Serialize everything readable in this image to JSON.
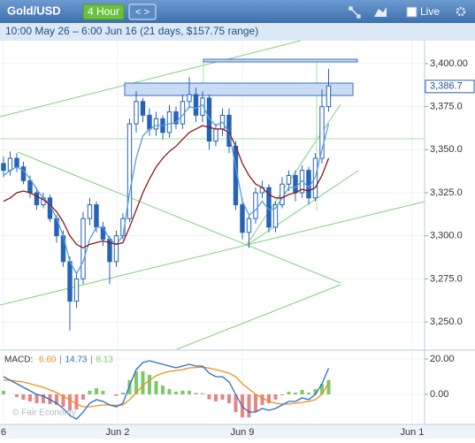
{
  "header": {
    "title": "Gold/USD",
    "timeframe": "4 Hour",
    "nav": "< >",
    "live": "Live"
  },
  "subtitle": "10:00 May 26 – 6:00 Jun 16 (21 days, $157.75 range)",
  "watermark": "© Fair Economy",
  "chart_data": [
    {
      "type": "candlestick",
      "xlim": [
        -0.53,
        63.47
      ],
      "xticks": [
        {
          "value": 0,
          "label": "6"
        },
        {
          "value": 17.2,
          "label": "Jun 2"
        },
        {
          "value": 36,
          "label": "Jun 9"
        },
        {
          "value": 61.6,
          "label": "Jun 1"
        }
      ],
      "ylim": [
        3234.1,
        3413.3
      ],
      "yticks": [
        {
          "value": 3250,
          "label": "3,250.0"
        },
        {
          "value": 3275,
          "label": "3,275.0"
        },
        {
          "value": 3300,
          "label": "3,300.0"
        },
        {
          "value": 3325,
          "label": "3,325.0"
        },
        {
          "value": 3350,
          "label": "3,350.0"
        },
        {
          "value": 3375,
          "label": "3,375.0"
        },
        {
          "value": 3400,
          "label": "3,400.00"
        }
      ],
      "current_price": {
        "value": 3386.7,
        "label": "3,386.7"
      },
      "color": "#2563b6",
      "open": [
        3342,
        3338,
        3345,
        3340,
        3332,
        3325,
        3318,
        3322,
        3310,
        3300,
        3285,
        3262,
        3275,
        3310,
        3318,
        3305,
        3298,
        3285,
        3300,
        3310,
        3365,
        3378,
        3370,
        3362,
        3368,
        3360,
        3372,
        3365,
        3378,
        3382,
        3370,
        3380,
        3355,
        3362,
        3370,
        3352,
        3318,
        3302,
        3310,
        3325,
        3328,
        3305,
        3318,
        3330,
        3335,
        3325,
        3338,
        3322,
        3345,
        3375
      ],
      "high": [
        3346,
        3349,
        3348,
        3343,
        3335,
        3328,
        3325,
        3324,
        3312,
        3303,
        3288,
        3278,
        3314,
        3322,
        3320,
        3308,
        3300,
        3303,
        3313,
        3368,
        3384,
        3380,
        3374,
        3372,
        3370,
        3376,
        3375,
        3382,
        3392,
        3386,
        3384,
        3382,
        3365,
        3374,
        3374,
        3355,
        3322,
        3312,
        3328,
        3332,
        3330,
        3320,
        3334,
        3338,
        3338,
        3341,
        3340,
        3348,
        3385,
        3397
      ],
      "low": [
        3334,
        3335,
        3337,
        3330,
        3322,
        3315,
        3316,
        3308,
        3296,
        3282,
        3245,
        3258,
        3272,
        3306,
        3302,
        3294,
        3272,
        3282,
        3298,
        3308,
        3360,
        3366,
        3358,
        3358,
        3356,
        3357,
        3362,
        3362,
        3374,
        3366,
        3366,
        3350,
        3352,
        3358,
        3348,
        3315,
        3298,
        3293,
        3307,
        3322,
        3302,
        3302,
        3316,
        3326,
        3320,
        3322,
        3318,
        3320,
        3342,
        3372
      ],
      "close": [
        3338,
        3345,
        3340,
        3332,
        3325,
        3318,
        3322,
        3310,
        3300,
        3285,
        3262,
        3275,
        3310,
        3318,
        3305,
        3298,
        3285,
        3300,
        3310,
        3365,
        3378,
        3370,
        3362,
        3368,
        3360,
        3372,
        3365,
        3378,
        3382,
        3370,
        3380,
        3355,
        3362,
        3370,
        3352,
        3318,
        3302,
        3310,
        3325,
        3328,
        3305,
        3318,
        3330,
        3335,
        3325,
        3338,
        3322,
        3345,
        3375,
        3387
      ],
      "series": [
        {
          "color": "#5b9be0",
          "values": [
            3335,
            3338,
            3340,
            3338,
            3333,
            3327,
            3322,
            3318,
            3310,
            3300,
            3285,
            3278,
            3285,
            3298,
            3305,
            3305,
            3298,
            3295,
            3300,
            3325,
            3345,
            3358,
            3362,
            3364,
            3364,
            3365,
            3366,
            3370,
            3375,
            3374,
            3376,
            3368,
            3364,
            3366,
            3360,
            3340,
            3320,
            3312,
            3315,
            3320,
            3315,
            3316,
            3322,
            3328,
            3328,
            3332,
            3328,
            3334,
            3350,
            3365
          ]
        },
        {
          "color": "#8b1a1a",
          "values": [
            3320,
            3322,
            3325,
            3326,
            3325,
            3323,
            3321,
            3318,
            3314,
            3308,
            3300,
            3295,
            3293,
            3295,
            3296,
            3297,
            3296,
            3295,
            3296,
            3305,
            3315,
            3325,
            3333,
            3340,
            3345,
            3349,
            3352,
            3356,
            3360,
            3362,
            3364,
            3363,
            3362,
            3362,
            3360,
            3352,
            3342,
            3335,
            3330,
            3328,
            3324,
            3322,
            3322,
            3324,
            3325,
            3327,
            3326,
            3328,
            3335,
            3345
          ]
        }
      ]
    },
    {
      "type": "macd",
      "title": "MACD:",
      "xlim": [
        -0.53,
        63.47
      ],
      "ylim": [
        -16,
        24
      ],
      "yticks": [
        {
          "value": 0,
          "label": "0.00"
        },
        {
          "value": 20,
          "label": "20.00"
        }
      ],
      "legend": [
        "6.60",
        "14.73",
        "8.13"
      ],
      "histogram": {
        "up_color": "#7cc96a",
        "down_color": "#e58585",
        "values": [
          2,
          0,
          -1.5,
          -3,
          -4,
          -5,
          -5,
          -5.5,
          -6,
          -7,
          -9,
          -8.5,
          -3,
          2,
          3.5,
          2,
          0,
          -0.8,
          1,
          8,
          13,
          13,
          11,
          7.5,
          5,
          3,
          1.5,
          2,
          2,
          0.8,
          0.6,
          -2.8,
          -4,
          -3,
          -5,
          -10,
          -13,
          -13,
          -10,
          -6,
          -5,
          -3,
          -0.5,
          1.5,
          1,
          2.5,
          1,
          3,
          6,
          8.13
        ]
      },
      "series": [
        {
          "color": "#f0901e",
          "values": [
            8,
            8,
            7.5,
            7,
            6,
            5,
            4,
            2.5,
            1,
            -1,
            -3,
            -5.5,
            -7,
            -7,
            -6.5,
            -6,
            -6,
            -6.2,
            -6,
            -3,
            1,
            5,
            8,
            10.5,
            12,
            13,
            13.5,
            14,
            15,
            15.2,
            15.4,
            14.8,
            14,
            13,
            12,
            10,
            6,
            3,
            0,
            -2,
            -4,
            -5,
            -5.5,
            -5.5,
            -5,
            -4.5,
            -4,
            -3,
            0,
            6.6
          ]
        },
        {
          "color": "#2b6fc4",
          "values": [
            10,
            8,
            6,
            4,
            2,
            0,
            -1,
            -3,
            -5,
            -8,
            -12,
            -14,
            -10,
            -5,
            -3,
            -4,
            -6,
            -7,
            -5,
            5,
            14,
            18,
            19,
            18,
            17,
            16,
            15,
            16,
            17,
            16,
            16,
            12,
            10,
            10,
            7,
            0,
            -7,
            -10,
            -10,
            -8,
            -9,
            -8,
            -6,
            -4,
            -4,
            -2,
            -3,
            0,
            6,
            14.73
          ]
        }
      ]
    }
  ]
}
